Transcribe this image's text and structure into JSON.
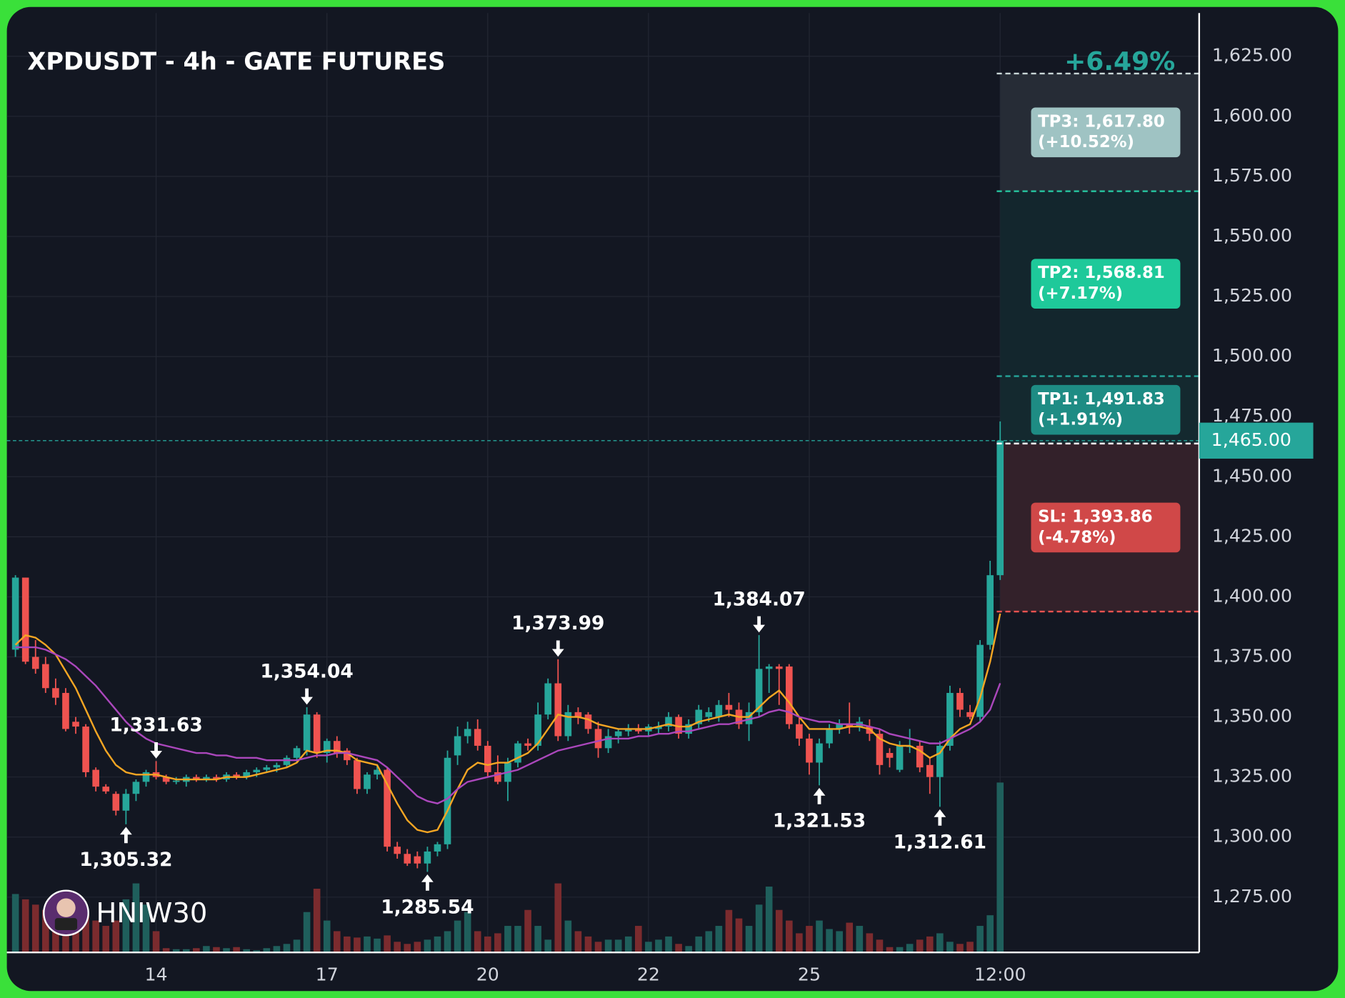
{
  "chart_data": {
    "type": "candlestick",
    "title": "XPDUSDT - 4h - GATE FUTURES",
    "change_label": "+6.49%",
    "watermark": "HNIW30",
    "categories": [
      null,
      null,
      null,
      null,
      null,
      null,
      null,
      null,
      null,
      null,
      null,
      null,
      null,
      null,
      "14",
      null,
      null,
      null,
      null,
      null,
      null,
      null,
      null,
      null,
      null,
      null,
      null,
      null,
      null,
      null,
      null,
      "17",
      null,
      null,
      null,
      null,
      null,
      null,
      null,
      null,
      null,
      null,
      null,
      null,
      null,
      null,
      null,
      "20",
      null,
      null,
      null,
      null,
      null,
      null,
      null,
      null,
      null,
      null,
      null,
      null,
      null,
      null,
      null,
      "22",
      null,
      null,
      null,
      null,
      null,
      null,
      null,
      null,
      null,
      null,
      null,
      null,
      null,
      null,
      null,
      "25",
      null,
      null,
      null,
      null,
      null,
      null,
      null,
      null,
      null,
      null,
      null,
      null,
      null,
      null,
      null,
      null,
      null,
      null,
      "12:00"
    ],
    "open": [
      1378,
      1408,
      1375,
      1372,
      1362,
      1360,
      1348,
      1346,
      1328,
      1321,
      1318,
      1311,
      1318,
      1323,
      1327,
      1325,
      1323,
      1323,
      1325,
      1324,
      1325,
      1324,
      1326,
      1325,
      1327,
      1328,
      1329,
      1330,
      1333,
      1336,
      1351,
      1335,
      1340,
      1336,
      1332,
      1320,
      1326,
      1328,
      1296,
      1293,
      1292,
      1289,
      1294,
      1297,
      1334,
      1342,
      1345,
      1338,
      1327,
      1323,
      1331,
      1339,
      1338,
      1351,
      1364,
      1342,
      1352,
      1351,
      1345,
      1337,
      1342,
      1344,
      1345,
      1344,
      1345,
      1346,
      1350,
      1343,
      1347,
      1350,
      1350,
      1355,
      1353,
      1347,
      1352,
      1370,
      1371,
      1371,
      1347,
      1341,
      1331,
      1339,
      1345,
      1347,
      1346,
      1346,
      1343,
      1335,
      1328,
      1338,
      1338,
      1330,
      1325,
      1338,
      1360,
      1352,
      1350,
      1380,
      1409
    ],
    "high": [
      1409,
      1408,
      1382,
      1375,
      1366,
      1362,
      1350,
      1347,
      1329,
      1322,
      1319,
      1320,
      1324,
      1328,
      1331.63,
      1326,
      1325,
      1326,
      1326,
      1326,
      1326,
      1327,
      1327,
      1328,
      1329,
      1330,
      1331,
      1334,
      1338,
      1354.04,
      1352,
      1341,
      1342,
      1337,
      1333,
      1327,
      1330,
      1329,
      1298,
      1295,
      1294,
      1296,
      1298,
      1336,
      1346,
      1348,
      1349,
      1340,
      1334,
      1333,
      1340,
      1341,
      1356,
      1366,
      1373.99,
      1355,
      1354,
      1352,
      1348,
      1345,
      1345,
      1347,
      1347,
      1347,
      1348,
      1352,
      1351,
      1349,
      1355,
      1354,
      1357,
      1360,
      1356,
      1356,
      1384.07,
      1372,
      1372,
      1372,
      1350,
      1343,
      1341,
      1347,
      1349,
      1356,
      1350,
      1349,
      1345,
      1337,
      1340,
      1345,
      1340,
      1333,
      1340,
      1363,
      1362,
      1355,
      1382,
      1415,
      1473
    ],
    "low": [
      1375,
      1372,
      1368,
      1360,
      1355,
      1344,
      1343,
      1325,
      1319,
      1318,
      1309,
      1305.32,
      1315,
      1321,
      1324,
      1322,
      1322,
      1321,
      1323,
      1323,
      1323,
      1323,
      1324,
      1324,
      1325,
      1327,
      1327,
      1329,
      1331,
      1334,
      1333,
      1331,
      1333,
      1330,
      1318,
      1318,
      1324,
      1294,
      1291,
      1288,
      1287,
      1285.54,
      1292,
      1295,
      1330,
      1339,
      1336,
      1325,
      1322,
      1315,
      1329,
      1336,
      1336,
      1349,
      1340,
      1340,
      1347,
      1343,
      1333,
      1335,
      1339,
      1342,
      1343,
      1342,
      1343,
      1344,
      1341,
      1341,
      1345,
      1348,
      1348,
      1350,
      1345,
      1340,
      1350,
      1360,
      1355,
      1345,
      1338,
      1326,
      1321.53,
      1337,
      1343,
      1343,
      1344,
      1340,
      1326,
      1329,
      1327,
      1335,
      1327,
      1318,
      1312.61,
      1336,
      1350,
      1349,
      1348,
      1378,
      1407
    ],
    "close": [
      1408,
      1373,
      1370,
      1362,
      1358,
      1345,
      1346,
      1327,
      1321,
      1319,
      1311,
      1318,
      1323,
      1327,
      1325,
      1323,
      1323.5,
      1325,
      1324,
      1325,
      1324,
      1326,
      1325,
      1327,
      1328,
      1329,
      1330,
      1333,
      1337,
      1351,
      1335,
      1340,
      1335,
      1332,
      1320,
      1326,
      1328,
      1296,
      1293,
      1289,
      1289,
      1294,
      1297,
      1333,
      1342,
      1345,
      1338,
      1327,
      1323,
      1331,
      1339,
      1338,
      1351,
      1364,
      1342,
      1352,
      1350,
      1345,
      1337,
      1342,
      1344,
      1345,
      1344,
      1346,
      1346,
      1350,
      1343,
      1347,
      1353,
      1352,
      1355,
      1353,
      1347,
      1352,
      1370,
      1371,
      1370,
      1347,
      1341,
      1331,
      1339,
      1345,
      1347,
      1346,
      1348,
      1343,
      1330,
      1333,
      1338,
      1338,
      1329,
      1325,
      1338,
      1360,
      1353,
      1350,
      1380,
      1409,
      1465
    ],
    "volume": [
      55,
      50,
      45,
      40,
      40,
      35,
      35,
      38,
      30,
      25,
      30,
      50,
      65,
      45,
      20,
      4,
      3,
      3,
      4,
      6,
      5,
      4,
      5,
      3,
      2,
      4,
      6,
      8,
      12,
      38,
      60,
      30,
      20,
      15,
      14,
      15,
      13,
      16,
      10,
      8,
      10,
      12,
      15,
      20,
      30,
      38,
      20,
      15,
      18,
      25,
      25,
      40,
      25,
      12,
      65,
      30,
      20,
      15,
      10,
      12,
      12,
      15,
      25,
      10,
      12,
      15,
      8,
      6,
      15,
      20,
      25,
      40,
      32,
      25,
      45,
      62,
      40,
      30,
      18,
      25,
      30,
      22,
      20,
      28,
      25,
      18,
      12,
      5,
      5,
      8,
      12,
      15,
      18,
      10,
      8,
      10,
      25,
      35,
      160
    ],
    "up_color": "#26a69a",
    "down_color": "#ef5350",
    "high_labels": {
      "14": "1,331.63",
      "29": "1,354.04",
      "54": "1,373.99",
      "74": "1,384.07"
    },
    "low_labels": {
      "11": "1,305.32",
      "41": "1,285.54",
      "80": "1,321.53",
      "92": "1,312.61"
    },
    "ma_lines": [
      {
        "color": "#f5a623",
        "values": [
          1380,
          1384,
          1383,
          1380,
          1376,
          1369,
          1362,
          1353,
          1344,
          1336,
          1330,
          1327,
          1326,
          1326,
          1326,
          1325,
          1324,
          1324,
          1324,
          1324,
          1324,
          1325,
          1325,
          1325,
          1326,
          1327,
          1328,
          1329,
          1331,
          1336,
          1335,
          1336,
          1336,
          1335,
          1332,
          1331,
          1330,
          1322,
          1314,
          1307,
          1303,
          1302,
          1303,
          1311,
          1320,
          1328,
          1331,
          1330,
          1331,
          1331,
          1333,
          1335,
          1339,
          1345,
          1351,
          1350,
          1350,
          1349,
          1347,
          1346,
          1345,
          1345,
          1345,
          1345,
          1346,
          1347,
          1346,
          1346,
          1348,
          1349,
          1350,
          1351,
          1350,
          1350,
          1354,
          1358,
          1361,
          1356,
          1350,
          1345,
          1345,
          1345,
          1345,
          1346,
          1346,
          1345,
          1341,
          1339,
          1338,
          1338,
          1336,
          1333,
          1335,
          1341,
          1345,
          1347,
          1358,
          1373,
          1393
        ]
      },
      {
        "color": "#ab47bc",
        "values": [
          1379,
          1379,
          1379,
          1378,
          1376,
          1374,
          1371,
          1367,
          1363,
          1358,
          1353,
          1348,
          1344,
          1341,
          1339,
          1338,
          1337,
          1336,
          1335,
          1335,
          1334,
          1334,
          1333,
          1333,
          1333,
          1332,
          1332,
          1332,
          1332,
          1333,
          1334,
          1334,
          1335,
          1335,
          1334,
          1333,
          1332,
          1329,
          1325,
          1321,
          1317,
          1315,
          1314,
          1316,
          1320,
          1323,
          1324,
          1325,
          1326,
          1327,
          1328,
          1330,
          1332,
          1334,
          1336,
          1337,
          1338,
          1339,
          1340,
          1341,
          1341,
          1341,
          1342,
          1342,
          1343,
          1343,
          1344,
          1344,
          1345,
          1346,
          1347,
          1347,
          1348,
          1349,
          1350,
          1352,
          1353,
          1352,
          1350,
          1349,
          1348,
          1348,
          1347,
          1347,
          1347,
          1346,
          1345,
          1343,
          1342,
          1341,
          1340,
          1339,
          1339,
          1341,
          1343,
          1345,
          1348,
          1353,
          1364
        ]
      }
    ],
    "last_price": {
      "value": 1465,
      "label": "1,465.00"
    },
    "entry": 1463.8,
    "levels": [
      {
        "label": "TP3: 1,617.80",
        "change": "(+10.52%)",
        "value": 1617.8,
        "color": "#9fc3c3",
        "line": "#c8d6d6",
        "zone": "#262c36"
      },
      {
        "label": "TP2: 1,568.81",
        "change": "(+7.17%)",
        "value": 1568.81,
        "color": "#1ec99a",
        "line": "#26c6a0",
        "zone": "#13262d"
      },
      {
        "label": "TP1: 1,491.83",
        "change": "(+1.91%)",
        "value": 1491.83,
        "color": "#1e8c84",
        "line": "#26a69a",
        "zone": "#14292f"
      },
      {
        "label": "SL: 1,393.86",
        "change": "(-4.78%)",
        "value": 1393.86,
        "color": "#d04848",
        "line": "#ef5350",
        "zone": "#33212a"
      }
    ],
    "ylim": [
      1252,
      1643
    ],
    "yticks": [
      {
        "value": 1275,
        "label": "1,275.00"
      },
      {
        "value": 1300,
        "label": "1,300.00"
      },
      {
        "value": 1325,
        "label": "1,325.00"
      },
      {
        "value": 1350,
        "label": "1,350.00"
      },
      {
        "value": 1375,
        "label": "1,375.00"
      },
      {
        "value": 1400,
        "label": "1,400.00"
      },
      {
        "value": 1425,
        "label": "1,425.00"
      },
      {
        "value": 1450,
        "label": "1,450.00"
      },
      {
        "value": 1475,
        "label": "1,475.00"
      },
      {
        "value": 1500,
        "label": "1,500.00"
      },
      {
        "value": 1525,
        "label": "1,525.00"
      },
      {
        "value": 1550,
        "label": "1,550.00"
      },
      {
        "value": 1575,
        "label": "1,575.00"
      },
      {
        "value": 1600,
        "label": "1,600.00"
      },
      {
        "value": 1625,
        "label": "1,625.00"
      }
    ],
    "grid": true
  }
}
